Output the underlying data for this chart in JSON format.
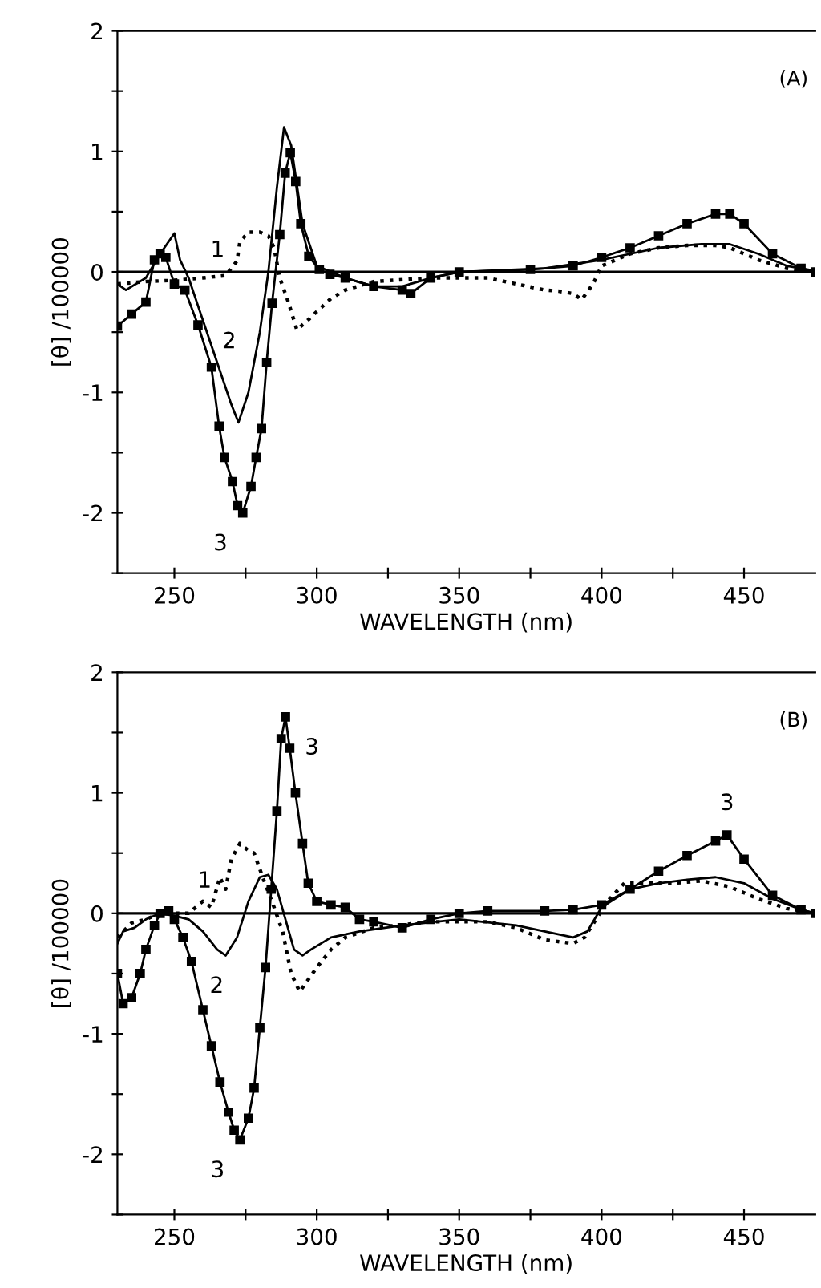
{
  "chart_data": [
    {
      "type": "line",
      "xlabel": "WAVELENGTH (nm)",
      "ylabel": "[θ] /100000",
      "xlim": [
        230,
        475
      ],
      "ylim": [
        -2.5,
        2
      ],
      "xticks": [
        250,
        {
          "value": 275,
          "label": null
        },
        300,
        {
          "value": 325,
          "label": null
        },
        350,
        {
          "value": 375,
          "label": null
        },
        400,
        {
          "value": 425,
          "label": null
        },
        450
      ],
      "yticks": [
        {
          "value": -2.5,
          "label": null
        },
        -2,
        {
          "value": -1.5,
          "label": null
        },
        -1,
        {
          "value": -0.5,
          "label": null
        },
        0,
        {
          "value": 0.5,
          "label": null
        },
        1,
        {
          "value": 1.5,
          "label": null
        },
        2
      ],
      "grid": false,
      "legend": false,
      "ref_lines": [
        {
          "axis": "y",
          "value": 0,
          "color": "#000000"
        }
      ],
      "annotations": [
        "(A)",
        {
          "text": "1",
          "x": 273,
          "y": 0.25
        },
        {
          "text": "2",
          "x": 270,
          "y": -1.1
        },
        {
          "text": "3",
          "x": 274,
          "y": -2.0
        }
      ],
      "series": [
        {
          "color": "#000000",
          "line_style": "dotted",
          "marker": "none",
          "x": [
            230,
            240,
            250,
            260,
            268,
            272,
            273,
            276,
            280,
            283,
            285,
            287,
            290,
            293,
            296,
            300,
            305,
            310,
            320,
            340,
            360,
            370,
            380,
            385,
            390,
            393,
            397,
            400,
            410,
            420,
            430,
            440,
            445,
            455,
            465,
            475
          ],
          "values": [
            -0.1,
            -0.08,
            -0.07,
            -0.05,
            -0.03,
            0.09,
            0.25,
            0.33,
            0.33,
            0.3,
            0.2,
            -0.05,
            -0.25,
            -0.48,
            -0.42,
            -0.33,
            -0.22,
            -0.15,
            -0.08,
            -0.05,
            -0.05,
            -0.1,
            -0.15,
            -0.16,
            -0.18,
            -0.23,
            -0.1,
            0.05,
            0.15,
            0.2,
            0.22,
            0.22,
            0.2,
            0.1,
            0.03,
            0
          ]
        },
        {
          "color": "#000000",
          "line_style": "solid",
          "marker": "none",
          "x": [
            230,
            233,
            240,
            245,
            250,
            252,
            255,
            260,
            265,
            270,
            272.5,
            276,
            280,
            283,
            286,
            288.5,
            291,
            295,
            300,
            310,
            320,
            330,
            340,
            350,
            380,
            400,
            420,
            435,
            445,
            455,
            465,
            475
          ],
          "values": [
            -0.1,
            -0.15,
            -0.05,
            0.15,
            0.32,
            0.1,
            -0.05,
            -0.4,
            -0.75,
            -1.1,
            -1.25,
            -1.0,
            -0.5,
            0,
            0.7,
            1.2,
            1.05,
            0.4,
            0.05,
            -0.05,
            -0.12,
            -0.12,
            -0.05,
            0,
            0.03,
            0.1,
            0.2,
            0.23,
            0.23,
            0.15,
            0.05,
            0.01
          ]
        },
        {
          "color": "#000000",
          "line_style": "solid",
          "marker": "square",
          "x": [
            230,
            235,
            240,
            243,
            245,
            247,
            250,
            253.7,
            258.3,
            263,
            265.7,
            267.6,
            270.4,
            272.2,
            274,
            276.9,
            278.7,
            280.6,
            282.4,
            284.3,
            287,
            288.9,
            290.7,
            292.6,
            294.4,
            297.2,
            300.9,
            304.6,
            310,
            320,
            330,
            333,
            340,
            350,
            375,
            390,
            400,
            410,
            420,
            430,
            440,
            445,
            450,
            460,
            470,
            475
          ],
          "values": [
            -0.45,
            -0.35,
            -0.25,
            0.1,
            0.15,
            0.12,
            -0.1,
            -0.15,
            -0.44,
            -0.79,
            -1.28,
            -1.54,
            -1.74,
            -1.94,
            -2.0,
            -1.78,
            -1.54,
            -1.3,
            -0.75,
            -0.26,
            0.31,
            0.82,
            0.99,
            0.75,
            0.4,
            0.13,
            0.02,
            -0.02,
            -0.05,
            -0.12,
            -0.15,
            -0.18,
            -0.05,
            0,
            0.02,
            0.05,
            0.12,
            0.2,
            0.3,
            0.4,
            0.48,
            0.48,
            0.4,
            0.15,
            0.03,
            0
          ]
        }
      ]
    },
    {
      "type": "line",
      "xlabel": "WAVELENGTH (nm)",
      "ylabel": "[θ] /100000",
      "xlim": [
        230,
        475
      ],
      "ylim": [
        -2.5,
        2
      ],
      "xticks": [
        250,
        {
          "value": 275,
          "label": null
        },
        300,
        {
          "value": 325,
          "label": null
        },
        350,
        {
          "value": 375,
          "label": null
        },
        400,
        {
          "value": 425,
          "label": null
        },
        450
      ],
      "yticks": [
        {
          "value": -2.5,
          "label": null
        },
        -2,
        {
          "value": -1.5,
          "label": null
        },
        -1,
        {
          "value": -0.5,
          "label": null
        },
        0,
        {
          "value": 0.5,
          "label": null
        },
        1,
        {
          "value": 1.5,
          "label": null
        },
        2
      ],
      "grid": false,
      "legend": false,
      "ref_lines": [
        {
          "axis": "y",
          "value": 0,
          "color": "#000000"
        }
      ],
      "annotations": [
        "(B)",
        {
          "text": "1",
          "x": 270,
          "y": 0.45
        },
        {
          "text": "2",
          "x": 268,
          "y": -0.35
        },
        {
          "text": "3",
          "x": 273,
          "y": -1.88
        },
        {
          "text": "3",
          "x": 290.5,
          "y": 1.37
        },
        {
          "text": "3",
          "x": 444,
          "y": 0.65
        }
      ],
      "series": [
        {
          "color": "#000000",
          "line_style": "dotted",
          "marker": "none",
          "x": [
            230,
            235,
            240,
            245,
            250,
            255,
            260,
            263,
            266,
            268,
            270,
            273,
            276,
            278,
            281,
            285,
            288,
            291,
            294,
            297,
            300,
            305,
            310,
            320,
            340,
            360,
            370,
            380,
            390,
            394,
            398,
            402,
            408,
            415,
            425,
            435,
            445,
            455,
            465,
            475
          ],
          "values": [
            -0.2,
            -0.08,
            -0.05,
            0,
            0,
            0,
            0.1,
            0.05,
            0.3,
            0.2,
            0.45,
            0.58,
            0.52,
            0.5,
            0.3,
            0.05,
            -0.15,
            -0.5,
            -0.65,
            -0.55,
            -0.45,
            -0.3,
            -0.2,
            -0.12,
            -0.07,
            -0.07,
            -0.12,
            -0.22,
            -0.25,
            -0.2,
            -0.05,
            0.1,
            0.25,
            0.25,
            0.25,
            0.27,
            0.22,
            0.12,
            0.04,
            0
          ]
        },
        {
          "color": "#000000",
          "line_style": "solid",
          "marker": "none",
          "x": [
            230,
            232,
            236,
            240,
            245,
            250,
            255,
            260,
            265,
            268,
            272,
            276,
            280,
            283,
            286,
            289,
            292,
            295,
            298,
            305,
            315,
            330,
            350,
            370,
            380,
            390,
            395,
            400,
            410,
            420,
            430,
            440,
            450,
            460,
            470,
            475
          ],
          "values": [
            -0.25,
            -0.15,
            -0.12,
            -0.05,
            0,
            -0.02,
            -0.05,
            -0.15,
            -0.3,
            -0.35,
            -0.2,
            0.1,
            0.3,
            0.32,
            0.2,
            -0.05,
            -0.3,
            -0.35,
            -0.3,
            -0.2,
            -0.15,
            -0.1,
            -0.05,
            -0.1,
            -0.15,
            -0.2,
            -0.15,
            0.05,
            0.2,
            0.25,
            0.28,
            0.3,
            0.25,
            0.12,
            0.03,
            0
          ]
        },
        {
          "color": "#000000",
          "line_style": "solid",
          "marker": "square",
          "x": [
            230,
            232,
            235,
            238,
            240,
            243,
            245,
            248,
            250,
            253,
            256,
            260,
            263,
            266,
            269,
            271,
            273,
            276,
            278,
            280,
            282,
            284,
            286,
            287.5,
            289,
            290.5,
            292.5,
            295,
            297,
            300,
            305,
            310,
            315,
            320,
            330,
            340,
            350,
            360,
            380,
            390,
            400,
            410,
            420,
            430,
            440,
            444,
            450,
            460,
            470,
            475
          ],
          "values": [
            -0.5,
            -0.75,
            -0.7,
            -0.5,
            -0.3,
            -0.1,
            0,
            0.02,
            -0.05,
            -0.2,
            -0.4,
            -0.8,
            -1.1,
            -1.4,
            -1.65,
            -1.8,
            -1.88,
            -1.7,
            -1.45,
            -0.95,
            -0.45,
            0.2,
            0.85,
            1.45,
            1.63,
            1.37,
            1.0,
            0.58,
            0.25,
            0.1,
            0.07,
            0.05,
            -0.05,
            -0.07,
            -0.12,
            -0.05,
            0,
            0.02,
            0.02,
            0.03,
            0.07,
            0.2,
            0.35,
            0.48,
            0.6,
            0.65,
            0.45,
            0.15,
            0.03,
            0
          ]
        }
      ]
    }
  ]
}
